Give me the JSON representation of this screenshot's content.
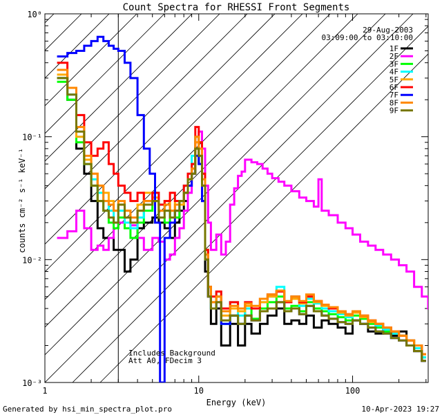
{
  "chart_data": {
    "type": "line",
    "title": "Count Spectra for RHESSI Front Segments",
    "xlabel": "Energy (keV)",
    "ylabel": "counts cm⁻² s⁻¹ keV⁻¹",
    "xscale": "log",
    "yscale": "log",
    "xlim": [
      1,
      310
    ],
    "ylim": [
      0.001,
      1
    ],
    "x_ticks": [
      {
        "value": 1,
        "label": "1"
      },
      {
        "value": 10,
        "label": "10"
      },
      {
        "value": 100,
        "label": "100"
      }
    ],
    "y_ticks": [
      {
        "value": 1,
        "label": "10⁰"
      },
      {
        "value": 0.1,
        "label": "10⁻¹"
      },
      {
        "value": 0.01,
        "label": "10⁻²"
      },
      {
        "value": 0.001,
        "label": "10⁻³"
      }
    ],
    "date": "29-Aug-2003",
    "time_range": "03:09:00 to 03:10:00",
    "notes": [
      "Includes Background",
      "Att A0, FDecim 3"
    ],
    "shaded_region": {
      "x_from": 1,
      "x_to": 3,
      "description": "diagonal hatch below 3 keV"
    },
    "series": [
      {
        "name": "1F",
        "color": "#000000",
        "x": [
          1.2,
          1.4,
          1.6,
          1.8,
          2.0,
          2.2,
          2.4,
          2.6,
          2.8,
          3.0,
          3.3,
          3.6,
          4.0,
          4.4,
          5.0,
          5.5,
          6.0,
          6.5,
          7.0,
          7.5,
          8.0,
          8.5,
          9.0,
          9.5,
          10,
          10.5,
          11,
          11.5,
          12,
          13,
          14,
          16,
          18,
          20,
          22,
          25,
          28,
          32,
          36,
          40,
          45,
          50,
          56,
          63,
          70,
          80,
          90,
          100,
          112,
          126,
          141,
          158,
          178,
          200,
          224,
          251,
          282
        ],
        "values": [
          0.3,
          0.2,
          0.08,
          0.05,
          0.03,
          0.018,
          0.015,
          0.015,
          0.012,
          0.012,
          0.008,
          0.01,
          0.018,
          0.02,
          0.022,
          0.02,
          0.018,
          0.015,
          0.02,
          0.025,
          0.03,
          0.04,
          0.05,
          0.08,
          0.06,
          0.03,
          0.008,
          0.005,
          0.003,
          0.004,
          0.002,
          0.003,
          0.002,
          0.003,
          0.0025,
          0.003,
          0.0035,
          0.004,
          0.003,
          0.0032,
          0.003,
          0.0035,
          0.0028,
          0.0032,
          0.003,
          0.0028,
          0.0025,
          0.0032,
          0.003,
          0.0026,
          0.0025,
          0.0028,
          0.0024,
          0.0026,
          0.002,
          0.0018,
          0.0015
        ]
      },
      {
        "name": "2F",
        "color": "#ff00ff",
        "x": [
          1.2,
          1.4,
          1.6,
          1.8,
          2.0,
          2.2,
          2.4,
          2.6,
          2.8,
          3.0,
          3.3,
          3.6,
          4.0,
          4.4,
          5.0,
          5.5,
          6.0,
          6.5,
          7.0,
          7.5,
          8.0,
          8.5,
          9.0,
          9.5,
          10,
          10.5,
          11,
          11.5,
          12,
          13,
          14,
          15,
          16,
          17,
          18,
          19,
          20,
          22,
          24,
          26,
          28,
          30,
          33,
          36,
          40,
          45,
          50,
          56,
          60,
          63,
          70,
          80,
          90,
          100,
          112,
          126,
          141,
          158,
          178,
          200,
          224,
          251,
          282,
          310
        ],
        "values": [
          0.015,
          0.017,
          0.025,
          0.018,
          0.012,
          0.013,
          0.012,
          0.015,
          0.018,
          0.02,
          0.018,
          0.019,
          0.015,
          0.012,
          0.015,
          0.014,
          0.01,
          0.011,
          0.015,
          0.018,
          0.025,
          0.035,
          0.06,
          0.09,
          0.11,
          0.08,
          0.04,
          0.02,
          0.012,
          0.016,
          0.011,
          0.014,
          0.028,
          0.038,
          0.048,
          0.052,
          0.065,
          0.062,
          0.06,
          0.055,
          0.05,
          0.046,
          0.043,
          0.04,
          0.036,
          0.032,
          0.03,
          0.027,
          0.045,
          0.025,
          0.023,
          0.02,
          0.018,
          0.016,
          0.014,
          0.013,
          0.012,
          0.011,
          0.01,
          0.009,
          0.008,
          0.006,
          0.005,
          0.004
        ]
      },
      {
        "name": "3F",
        "color": "#00ff00",
        "x": [
          1.2,
          1.4,
          1.6,
          1.8,
          2.0,
          2.2,
          2.4,
          2.6,
          2.8,
          3.0,
          3.3,
          3.6,
          4.0,
          4.4,
          5.0,
          5.5,
          6.0,
          6.5,
          7.0,
          7.5,
          8.0,
          8.5,
          9.0,
          9.5,
          10,
          10.5,
          11,
          11.5,
          12,
          13,
          14,
          16,
          18,
          20,
          22,
          25,
          28,
          32,
          36,
          40,
          45,
          50,
          56,
          63,
          70,
          80,
          90,
          100,
          112,
          126,
          141,
          158,
          178,
          200,
          224,
          251,
          282
        ],
        "values": [
          0.28,
          0.2,
          0.09,
          0.06,
          0.04,
          0.03,
          0.025,
          0.02,
          0.018,
          0.022,
          0.018,
          0.015,
          0.02,
          0.025,
          0.03,
          0.022,
          0.02,
          0.025,
          0.022,
          0.03,
          0.035,
          0.045,
          0.06,
          0.1,
          0.09,
          0.05,
          0.012,
          0.006,
          0.004,
          0.005,
          0.003,
          0.0035,
          0.003,
          0.004,
          0.0033,
          0.004,
          0.0045,
          0.005,
          0.004,
          0.0042,
          0.0038,
          0.0045,
          0.004,
          0.0038,
          0.0036,
          0.0034,
          0.0032,
          0.0035,
          0.0033,
          0.003,
          0.0028,
          0.0026,
          0.0025,
          0.0024,
          0.0022,
          0.002,
          0.0016
        ]
      },
      {
        "name": "4F",
        "color": "#00ffff",
        "x": [
          1.2,
          1.4,
          1.6,
          1.8,
          2.0,
          2.2,
          2.4,
          2.6,
          2.8,
          3.0,
          3.3,
          3.6,
          4.0,
          4.4,
          5.0,
          5.5,
          6.0,
          6.5,
          7.0,
          7.5,
          8.0,
          8.5,
          9.0,
          9.5,
          10,
          10.5,
          11,
          11.5,
          12,
          13,
          14,
          16,
          18,
          20,
          22,
          25,
          28,
          32,
          36,
          40,
          45,
          50,
          56,
          63,
          70,
          80,
          90,
          100,
          112,
          126,
          141,
          158,
          178,
          200,
          224,
          251,
          282
        ],
        "values": [
          0.3,
          0.22,
          0.1,
          0.06,
          0.045,
          0.035,
          0.03,
          0.025,
          0.02,
          0.025,
          0.02,
          0.018,
          0.022,
          0.03,
          0.035,
          0.028,
          0.025,
          0.022,
          0.025,
          0.03,
          0.04,
          0.05,
          0.07,
          0.1,
          0.08,
          0.04,
          0.01,
          0.006,
          0.004,
          0.0055,
          0.003,
          0.0045,
          0.0035,
          0.004,
          0.004,
          0.0045,
          0.005,
          0.006,
          0.0045,
          0.005,
          0.0042,
          0.0048,
          0.0044,
          0.004,
          0.0038,
          0.0036,
          0.0034,
          0.0037,
          0.0034,
          0.0031,
          0.0029,
          0.0027,
          0.0025,
          0.0024,
          0.0022,
          0.0019,
          0.0016
        ]
      },
      {
        "name": "5F",
        "color": "#ffaa00",
        "x": [
          1.2,
          1.4,
          1.6,
          1.8,
          2.0,
          2.2,
          2.4,
          2.6,
          2.8,
          3.0,
          3.3,
          3.6,
          4.0,
          4.4,
          5.0,
          5.5,
          6.0,
          6.5,
          7.0,
          7.5,
          8.0,
          8.5,
          9.0,
          9.5,
          10,
          10.5,
          11,
          11.5,
          12,
          13,
          14,
          16,
          18,
          20,
          22,
          25,
          28,
          32,
          36,
          40,
          45,
          50,
          56,
          63,
          70,
          80,
          90,
          100,
          112,
          126,
          141,
          158,
          178,
          200,
          224,
          251,
          282
        ],
        "values": [
          0.32,
          0.25,
          0.1,
          0.065,
          0.05,
          0.04,
          0.035,
          0.03,
          0.025,
          0.028,
          0.025,
          0.022,
          0.028,
          0.035,
          0.032,
          0.025,
          0.03,
          0.025,
          0.03,
          0.028,
          0.035,
          0.045,
          0.055,
          0.09,
          0.07,
          0.04,
          0.012,
          0.006,
          0.0045,
          0.005,
          0.0035,
          0.004,
          0.0038,
          0.0042,
          0.004,
          0.0045,
          0.005,
          0.0055,
          0.0045,
          0.0048,
          0.0044,
          0.005,
          0.0045,
          0.0042,
          0.004,
          0.0037,
          0.0035,
          0.0037,
          0.0034,
          0.0031,
          0.003,
          0.0028,
          0.0026,
          0.0024,
          0.0022,
          0.002,
          0.0017
        ]
      },
      {
        "name": "6F",
        "color": "#ff0000",
        "x": [
          1.2,
          1.4,
          1.6,
          1.8,
          2.0,
          2.2,
          2.4,
          2.6,
          2.8,
          3.0,
          3.3,
          3.6,
          4.0,
          4.4,
          5.0,
          5.5,
          6.0,
          6.5,
          7.0,
          7.5,
          8.0,
          8.5,
          9.0,
          9.5,
          10,
          10.5,
          11,
          11.5,
          12,
          13,
          14,
          16,
          18,
          20,
          22,
          25,
          28,
          32,
          36,
          40,
          45,
          50,
          56,
          63,
          70,
          80,
          90,
          100,
          112,
          126,
          141,
          158,
          178,
          200,
          224,
          251,
          282
        ],
        "values": [
          0.4,
          0.25,
          0.15,
          0.09,
          0.07,
          0.08,
          0.09,
          0.06,
          0.05,
          0.04,
          0.035,
          0.03,
          0.035,
          0.03,
          0.035,
          0.028,
          0.03,
          0.035,
          0.03,
          0.03,
          0.04,
          0.05,
          0.06,
          0.12,
          0.09,
          0.05,
          0.012,
          0.006,
          0.005,
          0.0055,
          0.004,
          0.0045,
          0.004,
          0.0045,
          0.004,
          0.0048,
          0.0052,
          0.0055,
          0.0045,
          0.005,
          0.0045,
          0.005,
          0.0046,
          0.0043,
          0.004,
          0.0038,
          0.0036,
          0.0038,
          0.0035,
          0.0032,
          0.003,
          0.0028,
          0.0026,
          0.0024,
          0.0022,
          0.002,
          0.0017
        ]
      },
      {
        "name": "7F",
        "color": "#0000ff",
        "x": [
          1.2,
          1.4,
          1.6,
          1.8,
          2.0,
          2.2,
          2.4,
          2.6,
          2.8,
          3.0,
          3.3,
          3.6,
          4.0,
          4.4,
          4.8,
          5.2,
          5.6,
          6.0,
          6.5,
          7.0,
          7.5,
          8.0,
          8.5,
          9.0,
          9.5,
          10,
          10.5,
          11,
          11.5,
          12,
          13,
          14,
          16,
          18,
          20,
          22,
          25,
          28,
          32,
          36,
          40,
          45,
          50,
          56,
          63,
          70,
          80,
          90,
          100,
          112,
          126,
          141,
          158,
          178,
          200,
          224,
          251,
          282
        ],
        "values": [
          0.45,
          0.48,
          0.5,
          0.55,
          0.6,
          0.65,
          0.6,
          0.55,
          0.52,
          0.5,
          0.4,
          0.3,
          0.15,
          0.08,
          0.05,
          0.02,
          0.001,
          0.015,
          0.02,
          0.025,
          0.03,
          0.035,
          0.04,
          0.05,
          0.07,
          0.06,
          0.03,
          0.01,
          0.005,
          0.004,
          0.0045,
          0.003,
          0.0035,
          0.003,
          0.0035,
          0.0032,
          0.0038,
          0.004,
          0.0045,
          0.0038,
          0.004,
          0.0036,
          0.0042,
          0.0038,
          0.0035,
          0.0033,
          0.0031,
          0.003,
          0.0032,
          0.003,
          0.0028,
          0.0026,
          0.0025,
          0.0023,
          0.0022,
          0.002,
          0.0018,
          0.0015
        ]
      },
      {
        "name": "8F",
        "color": "#ff8800",
        "x": [
          1.2,
          1.4,
          1.6,
          1.8,
          2.0,
          2.2,
          2.4,
          2.6,
          2.8,
          3.0,
          3.3,
          3.6,
          4.0,
          4.4,
          5.0,
          5.5,
          6.0,
          6.5,
          7.0,
          7.5,
          8.0,
          8.5,
          9.0,
          9.5,
          10,
          10.5,
          11,
          11.5,
          12,
          13,
          14,
          16,
          18,
          20,
          22,
          25,
          28,
          32,
          36,
          40,
          45,
          50,
          56,
          63,
          70,
          80,
          90,
          100,
          112,
          126,
          141,
          158,
          178,
          200,
          224,
          251,
          282
        ],
        "values": [
          0.35,
          0.25,
          0.12,
          0.07,
          0.05,
          0.04,
          0.03,
          0.028,
          0.025,
          0.03,
          0.025,
          0.022,
          0.025,
          0.03,
          0.03,
          0.025,
          0.028,
          0.025,
          0.028,
          0.03,
          0.035,
          0.045,
          0.055,
          0.1,
          0.08,
          0.045,
          0.011,
          0.006,
          0.0045,
          0.005,
          0.0038,
          0.0042,
          0.004,
          0.0044,
          0.0042,
          0.0048,
          0.0052,
          0.0056,
          0.0046,
          0.005,
          0.0046,
          0.0052,
          0.0046,
          0.0043,
          0.0041,
          0.0038,
          0.0036,
          0.0038,
          0.0035,
          0.0032,
          0.003,
          0.0028,
          0.0026,
          0.0024,
          0.0022,
          0.002,
          0.0017
        ]
      },
      {
        "name": "9F",
        "color": "#777700",
        "x": [
          1.2,
          1.4,
          1.6,
          1.8,
          2.0,
          2.2,
          2.4,
          2.6,
          2.8,
          3.0,
          3.3,
          3.6,
          4.0,
          4.4,
          5.0,
          5.5,
          6.0,
          6.5,
          7.0,
          7.5,
          8.0,
          8.5,
          9.0,
          9.5,
          10,
          10.5,
          11,
          11.5,
          12,
          13,
          14,
          16,
          18,
          20,
          22,
          25,
          28,
          32,
          36,
          40,
          45,
          50,
          56,
          63,
          70,
          80,
          90,
          100,
          112,
          126,
          141,
          158,
          178,
          200,
          224,
          251,
          282
        ],
        "values": [
          0.3,
          0.22,
          0.11,
          0.06,
          0.04,
          0.03,
          0.025,
          0.022,
          0.02,
          0.028,
          0.022,
          0.02,
          0.025,
          0.028,
          0.03,
          0.022,
          0.025,
          0.022,
          0.025,
          0.03,
          0.035,
          0.045,
          0.05,
          0.08,
          0.07,
          0.04,
          0.01,
          0.005,
          0.004,
          0.0045,
          0.0032,
          0.0035,
          0.003,
          0.0035,
          0.0032,
          0.0038,
          0.004,
          0.0045,
          0.0038,
          0.004,
          0.0036,
          0.0042,
          0.0038,
          0.0035,
          0.0033,
          0.0031,
          0.003,
          0.0032,
          0.003,
          0.0028,
          0.0026,
          0.0025,
          0.0023,
          0.0022,
          0.002,
          0.0018,
          0.0015
        ]
      }
    ]
  },
  "footer": {
    "generated_by": "Generated by hsi_min_spectra_plot.pro",
    "timestamp": "10-Apr-2023 19:27"
  }
}
